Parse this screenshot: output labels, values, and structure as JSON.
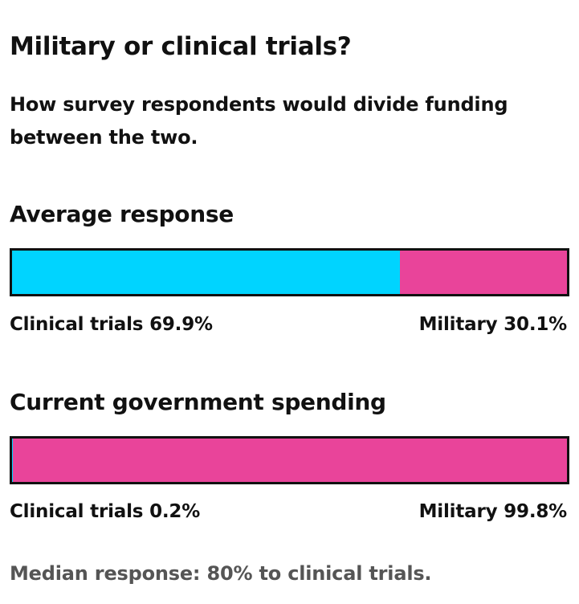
{
  "title": "Military or clinical trials?",
  "subtitle": "How survey respondents would divide funding between the two.",
  "colors": {
    "clinical": "#00d4ff",
    "military": "#e9449a"
  },
  "chart_data": [
    {
      "type": "bar",
      "title": "Average response",
      "categories": [
        "Clinical trials",
        "Military"
      ],
      "values": [
        69.9,
        30.1
      ],
      "labels": [
        "Clinical trials 69.9%",
        "Military 30.1%"
      ]
    },
    {
      "type": "bar",
      "title": "Current government spending",
      "categories": [
        "Clinical trials",
        "Military"
      ],
      "values": [
        0.2,
        99.8
      ],
      "labels": [
        "Clinical trials 0.2%",
        "Military 99.8%"
      ]
    }
  ],
  "footnote": "Median response: 80% to clinical trials."
}
